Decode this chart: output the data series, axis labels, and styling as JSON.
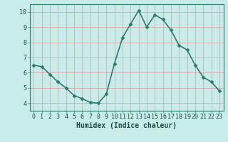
{
  "x": [
    0,
    1,
    2,
    3,
    4,
    5,
    6,
    7,
    8,
    9,
    10,
    11,
    12,
    13,
    14,
    15,
    16,
    17,
    18,
    19,
    20,
    21,
    22,
    23
  ],
  "y": [
    6.5,
    6.4,
    5.9,
    5.4,
    5.0,
    4.5,
    4.3,
    4.05,
    4.0,
    4.6,
    6.6,
    8.3,
    9.2,
    10.1,
    9.0,
    9.8,
    9.5,
    8.8,
    7.8,
    7.5,
    6.5,
    5.7,
    5.4,
    4.8
  ],
  "line_color": "#2d7d6e",
  "marker": "D",
  "marker_size": 2.5,
  "bg_color": "#c8ecea",
  "grid_color": "#d4a0a0",
  "xlabel": "Humidex (Indice chaleur)",
  "ylim": [
    3.5,
    10.5
  ],
  "xlim": [
    -0.5,
    23.5
  ],
  "yticks": [
    4,
    5,
    6,
    7,
    8,
    9,
    10
  ],
  "xticks": [
    0,
    1,
    2,
    3,
    4,
    5,
    6,
    7,
    8,
    9,
    10,
    11,
    12,
    13,
    14,
    15,
    16,
    17,
    18,
    19,
    20,
    21,
    22,
    23
  ],
  "xtick_labels": [
    "0",
    "1",
    "2",
    "3",
    "4",
    "5",
    "6",
    "7",
    "8",
    "9",
    "10",
    "11",
    "12",
    "13",
    "14",
    "15",
    "16",
    "17",
    "18",
    "19",
    "20",
    "21",
    "22",
    "23"
  ],
  "xlabel_fontsize": 7,
  "tick_fontsize": 6,
  "linewidth": 1.2,
  "spine_color": "#2d7d6e",
  "tick_color": "#2d7d6e",
  "label_color": "#1a4a40"
}
